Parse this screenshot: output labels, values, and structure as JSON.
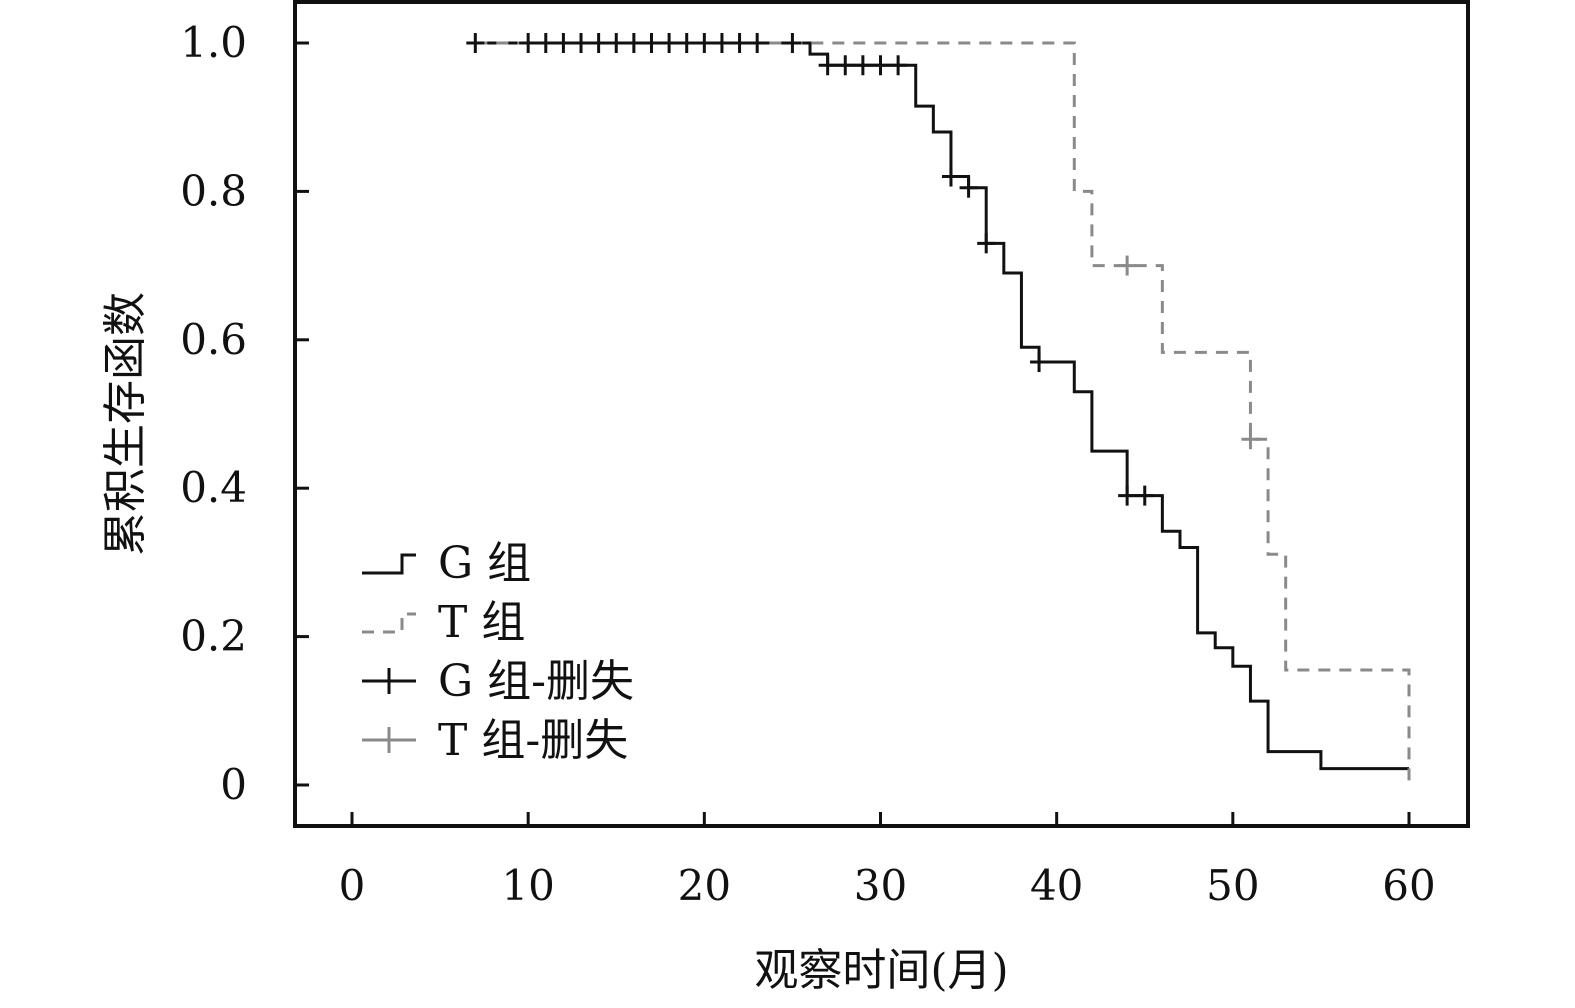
{
  "chart_data": {
    "type": "line",
    "subtype": "kaplan-meier step",
    "xlabel": "观察时间(月)",
    "ylabel": "累积生存函数",
    "xlim": [
      0,
      60
    ],
    "ylim": [
      0,
      1.0
    ],
    "x_ticks": [
      0,
      10,
      20,
      30,
      40,
      50,
      60
    ],
    "x_tick_labels": [
      "0",
      "10",
      "20",
      "30",
      "40",
      "50",
      "60"
    ],
    "y_ticks": [
      0,
      0.2,
      0.4,
      0.6,
      0.8,
      1.0
    ],
    "y_tick_labels": [
      "0",
      "0.2",
      "0.4",
      "0.6",
      "0.8",
      "1.0"
    ],
    "grid": false,
    "legend_position": "bottom-left",
    "colors": {
      "G": "#111111",
      "T": "#8a8a8a"
    },
    "series": [
      {
        "name": "G 组",
        "style": "solid",
        "steps": [
          [
            7,
            1.0
          ],
          [
            26,
            0.985
          ],
          [
            27,
            0.97
          ],
          [
            32,
            0.915
          ],
          [
            33,
            0.88
          ],
          [
            34,
            0.82
          ],
          [
            35,
            0.805
          ],
          [
            36,
            0.73
          ],
          [
            37,
            0.69
          ],
          [
            38,
            0.59
          ],
          [
            39,
            0.57
          ],
          [
            41,
            0.53
          ],
          [
            42,
            0.45
          ],
          [
            44,
            0.39
          ],
          [
            46,
            0.342
          ],
          [
            47,
            0.32
          ],
          [
            48,
            0.205
          ],
          [
            49,
            0.185
          ],
          [
            50,
            0.16
          ],
          [
            51,
            0.113
          ],
          [
            52,
            0.045
          ],
          [
            55,
            0.022
          ],
          [
            60,
            0.022
          ]
        ]
      },
      {
        "name": "T 组",
        "style": "dashed",
        "steps": [
          [
            7,
            1.0
          ],
          [
            41,
            0.8
          ],
          [
            42,
            0.7
          ],
          [
            46,
            0.583
          ],
          [
            51,
            0.466
          ],
          [
            52,
            0.311
          ],
          [
            53,
            0.155
          ],
          [
            60,
            0.0
          ]
        ]
      },
      {
        "name": "G 组-删失",
        "marker": "plus",
        "points": [
          [
            7,
            1.0
          ],
          [
            10,
            1.0
          ],
          [
            11,
            1.0
          ],
          [
            12,
            1.0
          ],
          [
            13,
            1.0
          ],
          [
            14,
            1.0
          ],
          [
            15,
            1.0
          ],
          [
            16,
            1.0
          ],
          [
            17,
            1.0
          ],
          [
            18,
            1.0
          ],
          [
            19,
            1.0
          ],
          [
            20,
            1.0
          ],
          [
            21,
            1.0
          ],
          [
            22,
            1.0
          ],
          [
            23,
            1.0
          ],
          [
            25,
            1.0
          ],
          [
            27,
            0.97
          ],
          [
            28,
            0.97
          ],
          [
            29,
            0.97
          ],
          [
            30,
            0.97
          ],
          [
            31,
            0.97
          ],
          [
            34,
            0.82
          ],
          [
            35,
            0.805
          ],
          [
            36,
            0.73
          ],
          [
            39,
            0.57
          ],
          [
            44,
            0.39
          ],
          [
            45,
            0.39
          ]
        ]
      },
      {
        "name": "T 组-删失",
        "marker": "plus",
        "points": [
          [
            44,
            0.7
          ],
          [
            51,
            0.466
          ]
        ]
      }
    ]
  }
}
